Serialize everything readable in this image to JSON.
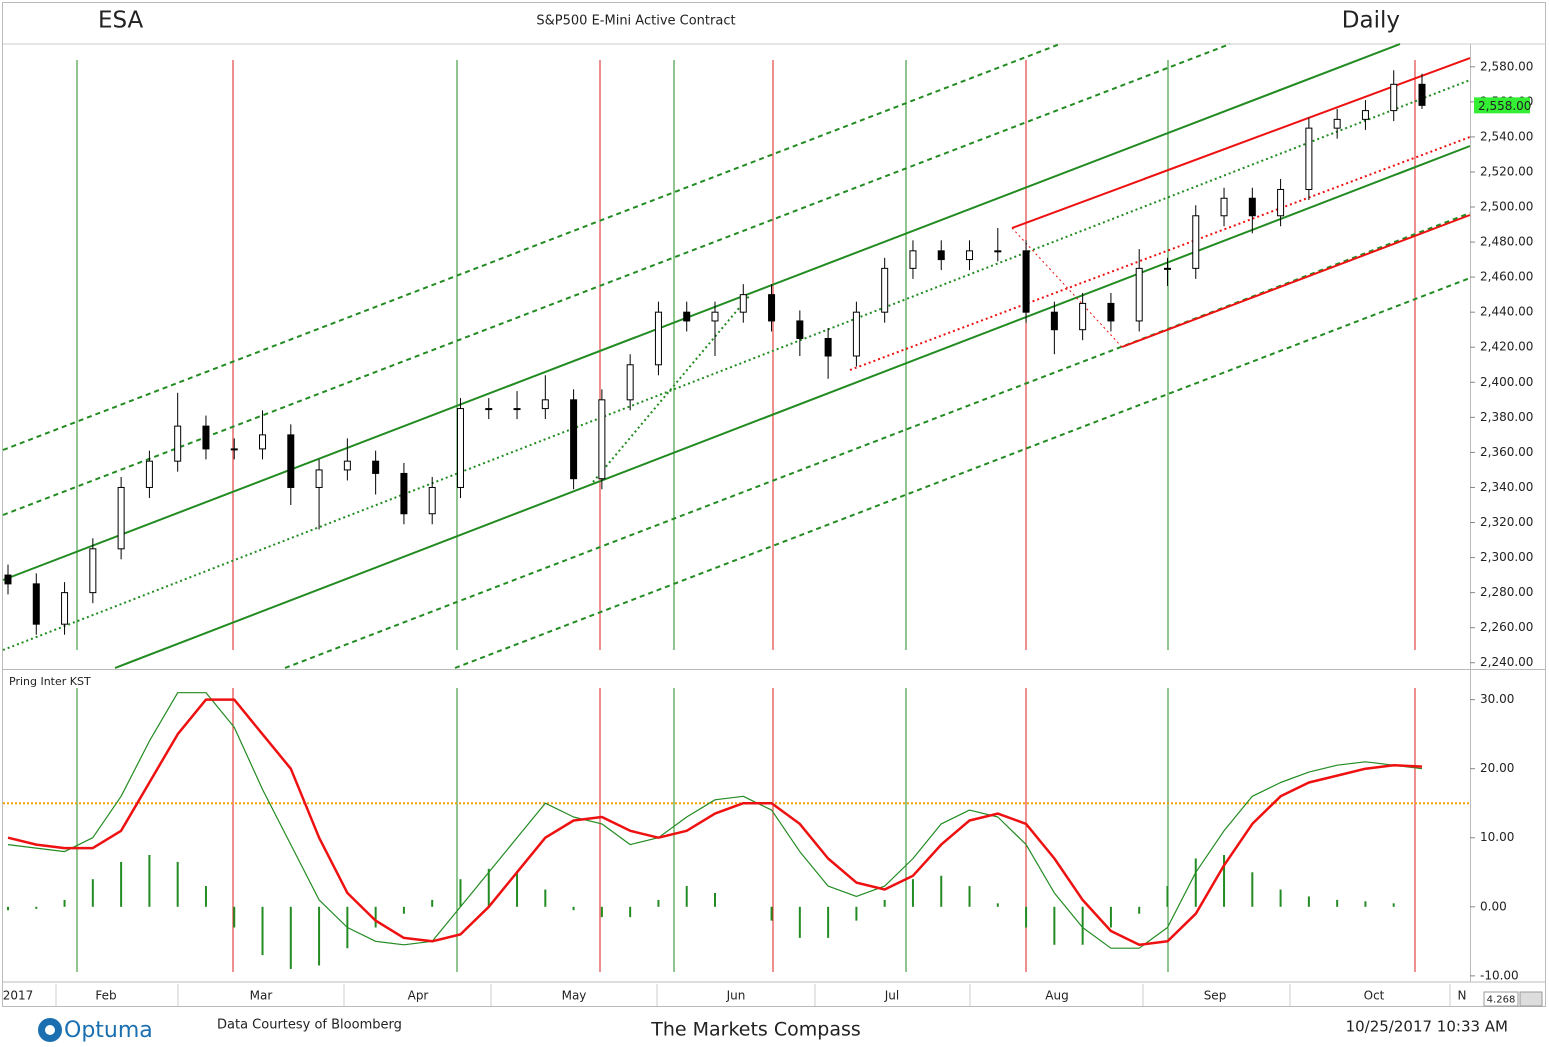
{
  "header": {
    "symbol": "ESA",
    "title": "S&P500 E-Mini Active Contract",
    "period": "Daily"
  },
  "footer": {
    "logo": "Optuma",
    "source": "Data Courtesy of Bloomberg",
    "brand": "The Markets Compass",
    "timestamp": "10/25/2017 10:33 AM",
    "zoom": "4.268"
  },
  "x_labels": [
    "2017",
    "Feb",
    "Mar",
    "Apr",
    "May",
    "Jun",
    "Jul",
    "Aug",
    "Sep",
    "Oct",
    "N"
  ],
  "chart_data": [
    {
      "type": "candlestick",
      "categories": [
        null,
        null,
        null,
        null,
        null,
        null,
        null,
        null,
        null,
        null,
        null,
        null,
        null,
        null,
        null,
        null,
        null,
        null,
        null,
        null,
        null,
        null,
        null,
        null,
        null,
        null,
        null,
        null,
        null,
        null,
        null,
        null,
        null,
        null,
        null,
        null,
        null,
        null,
        null,
        null,
        null,
        null,
        null,
        null,
        null,
        null,
        null,
        null,
        null,
        null,
        null
      ],
      "open": [
        2290,
        2285,
        2262,
        2280,
        2305,
        2340,
        2355,
        2375,
        2362,
        2362,
        2370,
        2340,
        2350,
        2355,
        2348,
        2325,
        2340,
        2385,
        2385,
        2385,
        2390,
        2345,
        2390,
        2410,
        2440,
        2435,
        2440,
        2450,
        2435,
        2425,
        2415,
        2440,
        2465,
        2475,
        2470,
        2475,
        2475,
        2440,
        2430,
        2445,
        2435,
        2465,
        2465,
        2495,
        2505,
        2495,
        2510,
        2545,
        2550,
        2555,
        2570
      ],
      "high": [
        2296,
        2291,
        2286,
        2311,
        2346,
        2361,
        2394,
        2381,
        2368,
        2384,
        2376,
        2356,
        2368,
        2361,
        2354,
        2346,
        2391,
        2391,
        2395,
        2404,
        2396,
        2396,
        2416,
        2446,
        2446,
        2446,
        2456,
        2456,
        2441,
        2431,
        2446,
        2471,
        2481,
        2481,
        2481,
        2488,
        2481,
        2446,
        2451,
        2451,
        2476,
        2471,
        2501,
        2511,
        2511,
        2516,
        2551,
        2556,
        2561,
        2578,
        2576
      ],
      "low": [
        2279,
        2256,
        2256,
        2274,
        2299,
        2334,
        2349,
        2356,
        2356,
        2356,
        2330,
        2316,
        2344,
        2336,
        2319,
        2319,
        2334,
        2379,
        2379,
        2379,
        2339,
        2339,
        2384,
        2404,
        2429,
        2415,
        2434,
        2429,
        2415,
        2402,
        2409,
        2434,
        2459,
        2464,
        2464,
        2469,
        2434,
        2416,
        2424,
        2429,
        2429,
        2455,
        2459,
        2489,
        2485,
        2489,
        2504,
        2539,
        2544,
        2549,
        2556
      ],
      "close": [
        2285,
        2262,
        2280,
        2305,
        2340,
        2355,
        2375,
        2362,
        2362,
        2370,
        2340,
        2350,
        2355,
        2348,
        2325,
        2340,
        2385,
        2385,
        2385,
        2390,
        2345,
        2390,
        2410,
        2440,
        2435,
        2440,
        2450,
        2435,
        2425,
        2415,
        2440,
        2465,
        2475,
        2470,
        2475,
        2475,
        2440,
        2430,
        2445,
        2435,
        2465,
        2465,
        2495,
        2505,
        2495,
        2510,
        2545,
        2550,
        2555,
        2570,
        2558
      ],
      "last_price_label": "2,558.00",
      "up_color": "#ffffff",
      "down_color": "#000000",
      "tag_color": "#33ee33",
      "ylim": [
        2237,
        2593
      ],
      "yticks": [
        {
          "value": 2240,
          "label": "2,240.00"
        },
        {
          "value": 2260,
          "label": "2,260.00"
        },
        {
          "value": 2280,
          "label": "2,280.00"
        },
        {
          "value": 2300,
          "label": "2,300.00"
        },
        {
          "value": 2320,
          "label": "2,320.00"
        },
        {
          "value": 2340,
          "label": "2,340.00"
        },
        {
          "value": 2360,
          "label": "2,360.00"
        },
        {
          "value": 2380,
          "label": "2,380.00"
        },
        {
          "value": 2400,
          "label": "2,400.00"
        },
        {
          "value": 2420,
          "label": "2,420.00"
        },
        {
          "value": 2440,
          "label": "2,440.00"
        },
        {
          "value": 2460,
          "label": "2,460.00"
        },
        {
          "value": 2480,
          "label": "2,480.00"
        },
        {
          "value": 2500,
          "label": "2,500.00"
        },
        {
          "value": 2520,
          "label": "2,520.00"
        },
        {
          "value": 2540,
          "label": "2,540.00"
        },
        {
          "value": 2560,
          "label": "2,560.00"
        },
        {
          "value": 2580,
          "label": "2,580.00"
        }
      ]
    },
    {
      "type": "line",
      "title": "Pring Inter KST",
      "categories": [
        null,
        null,
        null,
        null,
        null,
        null,
        null,
        null,
        null,
        null,
        null,
        null,
        null,
        null,
        null,
        null,
        null,
        null,
        null,
        null,
        null,
        null,
        null,
        null,
        null,
        null,
        null,
        null,
        null,
        null,
        null,
        null,
        null,
        null,
        null,
        null,
        null,
        null,
        null,
        null,
        null,
        null,
        null,
        null,
        null,
        null,
        null,
        null,
        null,
        null,
        null
      ],
      "series": [
        {
          "color": "#228b22",
          "values": [
            9,
            8.5,
            8,
            10,
            16,
            24,
            31,
            31,
            26,
            17,
            9,
            1,
            -3,
            -5,
            -5.5,
            -5,
            0,
            5,
            10,
            15,
            13,
            12,
            9,
            10,
            13,
            15.5,
            16,
            14,
            8,
            3,
            1.5,
            3,
            7,
            12,
            14,
            13,
            9,
            2,
            -3,
            -6,
            -6,
            -3,
            5,
            11,
            16,
            18,
            19.5,
            20.5,
            21,
            20.5,
            20
          ]
        },
        {
          "color": "#ee1111",
          "values": [
            10,
            9,
            8.5,
            8.5,
            11,
            18,
            25,
            30,
            30,
            25,
            20,
            10,
            2,
            -2,
            -4.5,
            -5,
            -4,
            0,
            5,
            10,
            12.5,
            13,
            11,
            10,
            11,
            13.5,
            15,
            15,
            12,
            7,
            3.5,
            2.5,
            4.5,
            9,
            12.5,
            13.5,
            12,
            7,
            1,
            -3.5,
            -5.5,
            -5,
            -1,
            6,
            12,
            16,
            18,
            19,
            20,
            20.5,
            20.3
          ]
        }
      ],
      "histogram": {
        "color": "#228b22",
        "values": [
          -0.5,
          -0.3,
          1,
          4,
          6.5,
          7.5,
          6.5,
          3,
          -3,
          -7,
          -9,
          -8.5,
          -6,
          -3,
          -1,
          1,
          4,
          5.5,
          5,
          2.5,
          -0.5,
          -1.5,
          -1.5,
          1,
          3,
          2,
          0,
          -2,
          -4.5,
          -4.5,
          -2,
          1,
          4,
          4.5,
          3,
          0.5,
          -3,
          -5.5,
          -5.5,
          -3,
          -1,
          3,
          7,
          7.5,
          5,
          2.5,
          1.5,
          1,
          0.8,
          0.5,
          0
        ]
      },
      "hline": {
        "value": 15,
        "color": "#f0a000"
      },
      "ylim": [
        -10.6,
        34
      ],
      "yticks": [
        {
          "value": -10,
          "label": "-10.00"
        },
        {
          "value": 0,
          "label": "0.00"
        },
        {
          "value": 10,
          "label": "10.00"
        },
        {
          "value": 20,
          "label": "20.00"
        },
        {
          "value": 30,
          "label": "30.00"
        }
      ]
    }
  ]
}
